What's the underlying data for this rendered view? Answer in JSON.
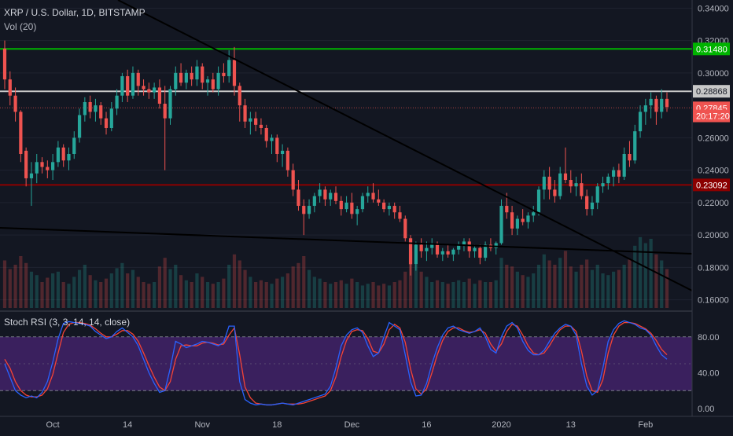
{
  "legend": {
    "symbol": "XRP / U.S. Dollar, 1D, BITSTAMP",
    "volume": "Vol (20)",
    "stoch": "Stoch RSI (3, 3, 14, 14, close)"
  },
  "colors": {
    "background": "#131722",
    "up": "#26a69a",
    "down": "#ef5350",
    "text": "#b2b5be",
    "grid": "#363a45",
    "green_line": "#00b300",
    "red_line": "#8b0000",
    "white_line": "#c8c8c8",
    "trendline": "#000000",
    "stoch_k": "#2962ff",
    "stoch_d": "#f44336",
    "stoch_band": "#6a2ca8"
  },
  "price_axis": {
    "ticks": [
      "0.34000",
      "0.32000",
      "0.30000",
      "0.26000",
      "0.24000",
      "0.22000",
      "0.20000",
      "0.18000",
      "0.16000"
    ]
  },
  "price_labels": [
    {
      "text": "0.31480",
      "value": 0.3148,
      "bg": "#00b300",
      "fg": "#ffffff"
    },
    {
      "text": "0.28868",
      "value": 0.28868,
      "bg": "#c8c8c8",
      "fg": "#131722"
    },
    {
      "text": "0.27845",
      "value": 0.27845,
      "bg": "#ef5350",
      "fg": "#ffffff"
    },
    {
      "text": "20:17:20",
      "value": 0.2735,
      "bg": "#ef5350",
      "fg": "#ffffff"
    },
    {
      "text": "0.23092",
      "value": 0.23092,
      "bg": "#8b0000",
      "fg": "#ffffff"
    }
  ],
  "horizontal_levels": [
    {
      "value": 0.3148,
      "color": "#00b300"
    },
    {
      "value": 0.28868,
      "color": "#c8c8c8"
    },
    {
      "value": 0.23092,
      "color": "#8b0000"
    }
  ],
  "stoch_axis": {
    "ticks": [
      "80.00",
      "40.00",
      "0.00"
    ]
  },
  "time_axis": {
    "ticks": [
      "Oct",
      "14",
      "Nov",
      "18",
      "Dec",
      "16",
      "2020",
      "13",
      "Feb"
    ]
  },
  "chart_data": {
    "type": "candlestick",
    "ylim": [
      0.155,
      0.345
    ],
    "candles": [
      [
        0.315,
        0.32,
        0.29,
        0.296
      ],
      [
        0.296,
        0.301,
        0.28,
        0.286
      ],
      [
        0.286,
        0.291,
        0.27,
        0.276
      ],
      [
        0.276,
        0.277,
        0.245,
        0.25
      ],
      [
        0.252,
        0.254,
        0.23,
        0.235
      ],
      [
        0.235,
        0.245,
        0.218,
        0.238
      ],
      [
        0.238,
        0.25,
        0.232,
        0.245
      ],
      [
        0.245,
        0.248,
        0.238,
        0.242
      ],
      [
        0.242,
        0.246,
        0.235,
        0.24
      ],
      [
        0.24,
        0.25,
        0.234,
        0.245
      ],
      [
        0.245,
        0.258,
        0.242,
        0.254
      ],
      [
        0.254,
        0.256,
        0.242,
        0.246
      ],
      [
        0.246,
        0.254,
        0.24,
        0.25
      ],
      [
        0.25,
        0.264,
        0.247,
        0.26
      ],
      [
        0.26,
        0.278,
        0.257,
        0.274
      ],
      [
        0.274,
        0.285,
        0.27,
        0.282
      ],
      [
        0.282,
        0.286,
        0.272,
        0.276
      ],
      [
        0.276,
        0.284,
        0.27,
        0.28
      ],
      [
        0.28,
        0.282,
        0.268,
        0.272
      ],
      [
        0.272,
        0.276,
        0.262,
        0.266
      ],
      [
        0.266,
        0.282,
        0.264,
        0.278
      ],
      [
        0.278,
        0.29,
        0.274,
        0.286
      ],
      [
        0.286,
        0.3,
        0.282,
        0.298
      ],
      [
        0.298,
        0.302,
        0.282,
        0.286
      ],
      [
        0.286,
        0.304,
        0.284,
        0.3
      ],
      [
        0.3,
        0.302,
        0.286,
        0.292
      ],
      [
        0.292,
        0.296,
        0.286,
        0.29
      ],
      [
        0.29,
        0.294,
        0.284,
        0.288
      ],
      [
        0.288,
        0.294,
        0.284,
        0.291
      ],
      [
        0.291,
        0.296,
        0.278,
        0.281
      ],
      [
        0.281,
        0.292,
        0.24,
        0.272
      ],
      [
        0.272,
        0.292,
        0.268,
        0.29
      ],
      [
        0.29,
        0.304,
        0.286,
        0.3
      ],
      [
        0.3,
        0.306,
        0.292,
        0.294
      ],
      [
        0.294,
        0.302,
        0.29,
        0.3
      ],
      [
        0.3,
        0.304,
        0.292,
        0.296
      ],
      [
        0.296,
        0.308,
        0.292,
        0.304
      ],
      [
        0.304,
        0.306,
        0.29,
        0.294
      ],
      [
        0.294,
        0.298,
        0.286,
        0.296
      ],
      [
        0.296,
        0.3,
        0.288,
        0.29
      ],
      [
        0.29,
        0.304,
        0.286,
        0.3
      ],
      [
        0.3,
        0.306,
        0.294,
        0.298
      ],
      [
        0.298,
        0.314,
        0.294,
        0.308
      ],
      [
        0.308,
        0.316,
        0.286,
        0.292
      ],
      [
        0.292,
        0.294,
        0.27,
        0.28
      ],
      [
        0.28,
        0.284,
        0.266,
        0.27
      ],
      [
        0.27,
        0.276,
        0.262,
        0.272
      ],
      [
        0.272,
        0.276,
        0.264,
        0.268
      ],
      [
        0.268,
        0.272,
        0.262,
        0.266
      ],
      [
        0.266,
        0.268,
        0.254,
        0.258
      ],
      [
        0.258,
        0.262,
        0.25,
        0.26
      ],
      [
        0.26,
        0.262,
        0.245,
        0.25
      ],
      [
        0.25,
        0.256,
        0.242,
        0.252
      ],
      [
        0.252,
        0.254,
        0.236,
        0.24
      ],
      [
        0.24,
        0.244,
        0.224,
        0.228
      ],
      [
        0.228,
        0.234,
        0.215,
        0.218
      ],
      [
        0.218,
        0.222,
        0.2,
        0.213
      ],
      [
        0.213,
        0.222,
        0.21,
        0.218
      ],
      [
        0.218,
        0.226,
        0.214,
        0.224
      ],
      [
        0.224,
        0.232,
        0.22,
        0.228
      ],
      [
        0.228,
        0.23,
        0.218,
        0.222
      ],
      [
        0.222,
        0.228,
        0.218,
        0.226
      ],
      [
        0.226,
        0.23,
        0.219,
        0.221
      ],
      [
        0.221,
        0.224,
        0.212,
        0.216
      ],
      [
        0.216,
        0.224,
        0.214,
        0.22
      ],
      [
        0.22,
        0.226,
        0.21,
        0.213
      ],
      [
        0.213,
        0.218,
        0.206,
        0.216
      ],
      [
        0.216,
        0.226,
        0.214,
        0.224
      ],
      [
        0.224,
        0.23,
        0.22,
        0.226
      ],
      [
        0.226,
        0.232,
        0.22,
        0.222
      ],
      [
        0.222,
        0.228,
        0.218,
        0.22
      ],
      [
        0.22,
        0.222,
        0.214,
        0.216
      ],
      [
        0.216,
        0.22,
        0.212,
        0.218
      ],
      [
        0.218,
        0.22,
        0.21,
        0.214
      ],
      [
        0.214,
        0.218,
        0.208,
        0.21
      ],
      [
        0.21,
        0.212,
        0.196,
        0.198
      ],
      [
        0.198,
        0.2,
        0.175,
        0.182
      ],
      [
        0.182,
        0.196,
        0.178,
        0.194
      ],
      [
        0.194,
        0.198,
        0.186,
        0.19
      ],
      [
        0.19,
        0.196,
        0.184,
        0.192
      ],
      [
        0.192,
        0.198,
        0.188,
        0.194
      ],
      [
        0.194,
        0.196,
        0.186,
        0.188
      ],
      [
        0.188,
        0.192,
        0.184,
        0.19
      ],
      [
        0.19,
        0.194,
        0.186,
        0.188
      ],
      [
        0.188,
        0.192,
        0.184,
        0.191
      ],
      [
        0.191,
        0.196,
        0.188,
        0.194
      ],
      [
        0.194,
        0.198,
        0.19,
        0.196
      ],
      [
        0.196,
        0.198,
        0.186,
        0.19
      ],
      [
        0.19,
        0.194,
        0.186,
        0.192
      ],
      [
        0.192,
        0.194,
        0.182,
        0.186
      ],
      [
        0.186,
        0.196,
        0.184,
        0.194
      ],
      [
        0.194,
        0.198,
        0.19,
        0.192
      ],
      [
        0.192,
        0.196,
        0.188,
        0.195
      ],
      [
        0.195,
        0.222,
        0.194,
        0.218
      ],
      [
        0.218,
        0.226,
        0.21,
        0.214
      ],
      [
        0.214,
        0.218,
        0.2,
        0.204
      ],
      [
        0.204,
        0.212,
        0.2,
        0.21
      ],
      [
        0.21,
        0.216,
        0.206,
        0.208
      ],
      [
        0.208,
        0.214,
        0.204,
        0.212
      ],
      [
        0.212,
        0.218,
        0.208,
        0.214
      ],
      [
        0.214,
        0.23,
        0.212,
        0.228
      ],
      [
        0.228,
        0.24,
        0.222,
        0.236
      ],
      [
        0.236,
        0.242,
        0.222,
        0.228
      ],
      [
        0.228,
        0.234,
        0.22,
        0.224
      ],
      [
        0.224,
        0.242,
        0.222,
        0.238
      ],
      [
        0.238,
        0.254,
        0.232,
        0.234
      ],
      [
        0.234,
        0.24,
        0.226,
        0.23
      ],
      [
        0.23,
        0.236,
        0.224,
        0.232
      ],
      [
        0.232,
        0.238,
        0.222,
        0.224
      ],
      [
        0.224,
        0.228,
        0.212,
        0.216
      ],
      [
        0.216,
        0.224,
        0.212,
        0.22
      ],
      [
        0.22,
        0.232,
        0.216,
        0.23
      ],
      [
        0.23,
        0.236,
        0.226,
        0.232
      ],
      [
        0.232,
        0.238,
        0.228,
        0.236
      ],
      [
        0.236,
        0.242,
        0.23,
        0.24
      ],
      [
        0.24,
        0.244,
        0.232,
        0.236
      ],
      [
        0.236,
        0.254,
        0.234,
        0.25
      ],
      [
        0.25,
        0.258,
        0.242,
        0.246
      ],
      [
        0.246,
        0.268,
        0.244,
        0.264
      ],
      [
        0.264,
        0.28,
        0.26,
        0.276
      ],
      [
        0.276,
        0.284,
        0.268,
        0.28
      ],
      [
        0.28,
        0.288,
        0.272,
        0.284
      ],
      [
        0.284,
        0.286,
        0.268,
        0.276
      ],
      [
        0.276,
        0.29,
        0.272,
        0.284
      ],
      [
        0.284,
        0.288,
        0.276,
        0.279
      ]
    ],
    "volume": [
      0.55,
      0.45,
      0.5,
      0.6,
      0.52,
      0.42,
      0.38,
      0.3,
      0.35,
      0.4,
      0.42,
      0.3,
      0.28,
      0.36,
      0.44,
      0.5,
      0.38,
      0.32,
      0.3,
      0.34,
      0.4,
      0.46,
      0.52,
      0.4,
      0.44,
      0.36,
      0.3,
      0.28,
      0.3,
      0.48,
      0.58,
      0.45,
      0.5,
      0.38,
      0.32,
      0.3,
      0.4,
      0.36,
      0.3,
      0.28,
      0.3,
      0.34,
      0.5,
      0.62,
      0.55,
      0.44,
      0.36,
      0.3,
      0.32,
      0.3,
      0.28,
      0.34,
      0.36,
      0.4,
      0.48,
      0.52,
      0.6,
      0.44,
      0.36,
      0.34,
      0.3,
      0.28,
      0.3,
      0.32,
      0.28,
      0.34,
      0.3,
      0.26,
      0.28,
      0.3,
      0.26,
      0.28,
      0.26,
      0.3,
      0.32,
      0.42,
      0.65,
      0.5,
      0.42,
      0.36,
      0.3,
      0.32,
      0.3,
      0.28,
      0.3,
      0.32,
      0.3,
      0.34,
      0.28,
      0.32,
      0.3,
      0.3,
      0.32,
      0.58,
      0.5,
      0.48,
      0.42,
      0.38,
      0.36,
      0.4,
      0.5,
      0.62,
      0.55,
      0.5,
      0.58,
      0.66,
      0.48,
      0.42,
      0.5,
      0.56,
      0.44,
      0.5,
      0.4,
      0.38,
      0.42,
      0.44,
      0.5,
      0.56,
      0.72,
      0.82,
      0.75,
      0.8,
      0.62,
      0.55,
      0.45
    ],
    "stoch_k": [
      50,
      35,
      20,
      15,
      12,
      14,
      12,
      18,
      30,
      52,
      78,
      95,
      97,
      96,
      95,
      94,
      92,
      86,
      82,
      78,
      80,
      86,
      90,
      85,
      80,
      70,
      55,
      40,
      28,
      18,
      20,
      45,
      75,
      72,
      68,
      70,
      72,
      75,
      74,
      72,
      70,
      74,
      92,
      92,
      30,
      10,
      6,
      4,
      5,
      4,
      4,
      5,
      6,
      5,
      4,
      6,
      8,
      10,
      12,
      14,
      16,
      25,
      45,
      70,
      82,
      88,
      90,
      85,
      70,
      58,
      62,
      80,
      96,
      92,
      88,
      60,
      30,
      14,
      15,
      28,
      50,
      68,
      82,
      90,
      92,
      88,
      86,
      84,
      86,
      90,
      80,
      66,
      62,
      80,
      92,
      96,
      90,
      75,
      65,
      60,
      60,
      65,
      75,
      84,
      90,
      94,
      92,
      82,
      50,
      25,
      15,
      20,
      45,
      75,
      88,
      95,
      98,
      96,
      94,
      90,
      88,
      82,
      70,
      60,
      55
    ],
    "stoch_d": [
      55,
      45,
      30,
      20,
      15,
      13,
      13,
      15,
      22,
      38,
      62,
      85,
      94,
      96,
      96,
      95,
      93,
      89,
      84,
      80,
      80,
      83,
      87,
      87,
      83,
      75,
      62,
      48,
      35,
      24,
      20,
      30,
      55,
      70,
      71,
      70,
      70,
      73,
      74,
      73,
      71,
      72,
      82,
      90,
      60,
      24,
      12,
      6,
      5,
      4,
      4,
      5,
      6,
      5,
      5,
      5,
      6,
      8,
      10,
      12,
      14,
      20,
      35,
      58,
      76,
      86,
      88,
      87,
      78,
      64,
      62,
      72,
      88,
      94,
      90,
      74,
      44,
      22,
      16,
      22,
      40,
      60,
      76,
      86,
      90,
      90,
      87,
      85,
      86,
      88,
      84,
      72,
      64,
      72,
      86,
      94,
      92,
      82,
      70,
      62,
      60,
      62,
      70,
      80,
      88,
      92,
      92,
      86,
      64,
      36,
      20,
      18,
      32,
      62,
      82,
      92,
      96,
      96,
      95,
      92,
      89,
      84,
      76,
      66,
      60
    ]
  }
}
